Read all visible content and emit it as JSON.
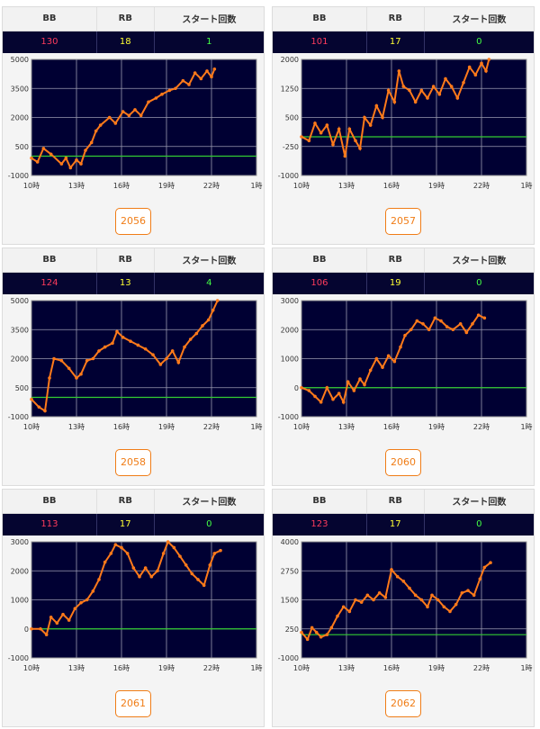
{
  "headers": {
    "bb": "BB",
    "rb": "RB",
    "start": "スタート回数"
  },
  "cards": [
    {
      "machine": "2056",
      "bb": "130",
      "rb": "18",
      "start": "1",
      "chart_data": {
        "type": "line",
        "ylim": [
          -1000,
          5000
        ],
        "yticks": [
          "5000",
          "3500",
          "2000",
          "500",
          "-1000"
        ],
        "xticks": [
          "10時",
          "13時",
          "16時",
          "19時",
          "22時",
          "1時"
        ],
        "xlim": [
          10,
          25
        ],
        "baseline": 0,
        "series": [
          {
            "values": [
              [
                10,
                -100
              ],
              [
                10.4,
                -300
              ],
              [
                10.8,
                400
              ],
              [
                11.3,
                100
              ],
              [
                12,
                -400
              ],
              [
                12.3,
                -100
              ],
              [
                12.6,
                -600
              ],
              [
                13,
                -200
              ],
              [
                13.3,
                -400
              ],
              [
                13.6,
                300
              ],
              [
                14,
                700
              ],
              [
                14.3,
                1300
              ],
              [
                14.6,
                1600
              ],
              [
                15.2,
                2000
              ],
              [
                15.6,
                1700
              ],
              [
                16.1,
                2300
              ],
              [
                16.5,
                2100
              ],
              [
                16.9,
                2400
              ],
              [
                17.3,
                2100
              ],
              [
                17.8,
                2800
              ],
              [
                18.3,
                3000
              ],
              [
                18.7,
                3200
              ],
              [
                19.2,
                3400
              ],
              [
                19.6,
                3500
              ],
              [
                20.1,
                3900
              ],
              [
                20.5,
                3700
              ],
              [
                20.9,
                4300
              ],
              [
                21.3,
                4000
              ],
              [
                21.7,
                4400
              ],
              [
                22,
                4100
              ],
              [
                22.2,
                4500
              ]
            ]
          }
        ]
      }
    },
    {
      "machine": "2057",
      "bb": "101",
      "rb": "17",
      "start": "0",
      "chart_data": {
        "type": "line",
        "ylim": [
          -1000,
          2000
        ],
        "yticks": [
          "2000",
          "1250",
          "500",
          "-250",
          "-1000"
        ],
        "xticks": [
          "10時",
          "13時",
          "16時",
          "19時",
          "22時",
          "1時"
        ],
        "xlim": [
          10,
          25
        ],
        "baseline": 0,
        "series": [
          {
            "values": [
              [
                10,
                0
              ],
              [
                10.5,
                -100
              ],
              [
                10.9,
                350
              ],
              [
                11.3,
                100
              ],
              [
                11.7,
                300
              ],
              [
                12.1,
                -200
              ],
              [
                12.5,
                200
              ],
              [
                12.9,
                -500
              ],
              [
                13.2,
                200
              ],
              [
                13.6,
                -100
              ],
              [
                13.9,
                -300
              ],
              [
                14.2,
                500
              ],
              [
                14.6,
                300
              ],
              [
                15,
                800
              ],
              [
                15.4,
                500
              ],
              [
                15.8,
                1200
              ],
              [
                16.2,
                900
              ],
              [
                16.5,
                1700
              ],
              [
                16.8,
                1300
              ],
              [
                17.2,
                1200
              ],
              [
                17.6,
                900
              ],
              [
                18,
                1200
              ],
              [
                18.4,
                1000
              ],
              [
                18.8,
                1300
              ],
              [
                19.2,
                1100
              ],
              [
                19.6,
                1500
              ],
              [
                20,
                1300
              ],
              [
                20.4,
                1000
              ],
              [
                20.8,
                1400
              ],
              [
                21.2,
                1800
              ],
              [
                21.6,
                1600
              ],
              [
                22,
                1900
              ],
              [
                22.3,
                1700
              ],
              [
                22.5,
                2000
              ]
            ]
          }
        ]
      }
    },
    {
      "machine": "2058",
      "bb": "124",
      "rb": "13",
      "start": "4",
      "chart_data": {
        "type": "line",
        "ylim": [
          -1000,
          5000
        ],
        "yticks": [
          "5000",
          "3500",
          "2000",
          "500",
          "-1000"
        ],
        "xticks": [
          "10時",
          "13時",
          "16時",
          "19時",
          "22時",
          "1時"
        ],
        "xlim": [
          10,
          25
        ],
        "baseline": 0,
        "series": [
          {
            "values": [
              [
                10,
                -100
              ],
              [
                10.5,
                -500
              ],
              [
                10.9,
                -700
              ],
              [
                11.2,
                1000
              ],
              [
                11.5,
                2000
              ],
              [
                12,
                1900
              ],
              [
                12.5,
                1500
              ],
              [
                13,
                1000
              ],
              [
                13.3,
                1200
              ],
              [
                13.7,
                1900
              ],
              [
                14.1,
                2000
              ],
              [
                14.5,
                2400
              ],
              [
                14.9,
                2600
              ],
              [
                15.4,
                2800
              ],
              [
                15.7,
                3400
              ],
              [
                16.1,
                3100
              ],
              [
                16.6,
                2900
              ],
              [
                17.1,
                2700
              ],
              [
                17.6,
                2500
              ],
              [
                18.1,
                2200
              ],
              [
                18.6,
                1700
              ],
              [
                19,
                2000
              ],
              [
                19.4,
                2400
              ],
              [
                19.8,
                1800
              ],
              [
                20.2,
                2600
              ],
              [
                20.6,
                3000
              ],
              [
                21,
                3300
              ],
              [
                21.4,
                3700
              ],
              [
                21.8,
                4000
              ],
              [
                22.1,
                4500
              ],
              [
                22.4,
                5000
              ]
            ]
          }
        ]
      }
    },
    {
      "machine": "2060",
      "bb": "106",
      "rb": "19",
      "start": "0",
      "chart_data": {
        "type": "line",
        "ylim": [
          -1000,
          3000
        ],
        "yticks": [
          "3000",
          "2000",
          "1000",
          "0",
          "-1000"
        ],
        "xticks": [
          "10時",
          "13時",
          "16時",
          "19時",
          "22時",
          "1時"
        ],
        "xlim": [
          10,
          25
        ],
        "baseline": 0,
        "series": [
          {
            "values": [
              [
                10,
                0
              ],
              [
                10.5,
                -100
              ],
              [
                10.9,
                -300
              ],
              [
                11.3,
                -500
              ],
              [
                11.7,
                0
              ],
              [
                12.1,
                -400
              ],
              [
                12.5,
                -200
              ],
              [
                12.8,
                -500
              ],
              [
                13.1,
                200
              ],
              [
                13.5,
                -100
              ],
              [
                13.9,
                300
              ],
              [
                14.2,
                100
              ],
              [
                14.6,
                600
              ],
              [
                15,
                1000
              ],
              [
                15.4,
                700
              ],
              [
                15.8,
                1100
              ],
              [
                16.2,
                900
              ],
              [
                16.6,
                1400
              ],
              [
                16.9,
                1800
              ],
              [
                17.3,
                2000
              ],
              [
                17.7,
                2300
              ],
              [
                18.1,
                2200
              ],
              [
                18.5,
                2000
              ],
              [
                18.9,
                2400
              ],
              [
                19.3,
                2300
              ],
              [
                19.7,
                2100
              ],
              [
                20.1,
                2000
              ],
              [
                20.6,
                2200
              ],
              [
                21,
                1900
              ],
              [
                21.4,
                2200
              ],
              [
                21.8,
                2500
              ],
              [
                22.2,
                2400
              ]
            ]
          }
        ]
      }
    },
    {
      "machine": "2061",
      "bb": "113",
      "rb": "17",
      "start": "0",
      "chart_data": {
        "type": "line",
        "ylim": [
          -1000,
          3000
        ],
        "yticks": [
          "3000",
          "2000",
          "1000",
          "0",
          "-1000"
        ],
        "xticks": [
          "10時",
          "13時",
          "16時",
          "19時",
          "22時",
          "1時"
        ],
        "xlim": [
          10,
          25
        ],
        "baseline": 0,
        "series": [
          {
            "values": [
              [
                10,
                0
              ],
              [
                10.6,
                0
              ],
              [
                11,
                -200
              ],
              [
                11.3,
                400
              ],
              [
                11.7,
                200
              ],
              [
                12.1,
                500
              ],
              [
                12.5,
                300
              ],
              [
                12.9,
                700
              ],
              [
                13.3,
                900
              ],
              [
                13.7,
                1000
              ],
              [
                14.1,
                1300
              ],
              [
                14.5,
                1700
              ],
              [
                14.9,
                2300
              ],
              [
                15.3,
                2600
              ],
              [
                15.6,
                2900
              ],
              [
                16,
                2800
              ],
              [
                16.4,
                2600
              ],
              [
                16.8,
                2100
              ],
              [
                17.2,
                1800
              ],
              [
                17.6,
                2100
              ],
              [
                18,
                1800
              ],
              [
                18.4,
                2000
              ],
              [
                18.8,
                2600
              ],
              [
                19.1,
                3000
              ],
              [
                19.5,
                2800
              ],
              [
                19.9,
                2500
              ],
              [
                20.3,
                2200
              ],
              [
                20.7,
                1900
              ],
              [
                21.1,
                1700
              ],
              [
                21.5,
                1500
              ],
              [
                21.9,
                2200
              ],
              [
                22.2,
                2600
              ],
              [
                22.6,
                2700
              ]
            ]
          }
        ]
      }
    },
    {
      "machine": "2062",
      "bb": "123",
      "rb": "17",
      "start": "0",
      "chart_data": {
        "type": "line",
        "ylim": [
          -1000,
          4000
        ],
        "yticks": [
          "4000",
          "2750",
          "1500",
          "250",
          "-1000"
        ],
        "xticks": [
          "10時",
          "13時",
          "16時",
          "19時",
          "22時",
          "1時"
        ],
        "xlim": [
          10,
          25
        ],
        "baseline": 0,
        "series": [
          {
            "values": [
              [
                10,
                100
              ],
              [
                10.4,
                -200
              ],
              [
                10.7,
                300
              ],
              [
                11,
                100
              ],
              [
                11.3,
                -100
              ],
              [
                11.7,
                0
              ],
              [
                12,
                300
              ],
              [
                12.4,
                800
              ],
              [
                12.8,
                1200
              ],
              [
                13.2,
                1000
              ],
              [
                13.6,
                1500
              ],
              [
                14,
                1400
              ],
              [
                14.4,
                1700
              ],
              [
                14.8,
                1500
              ],
              [
                15.2,
                1800
              ],
              [
                15.6,
                1600
              ],
              [
                16,
                2800
              ],
              [
                16.4,
                2500
              ],
              [
                16.8,
                2300
              ],
              [
                17.2,
                2000
              ],
              [
                17.6,
                1700
              ],
              [
                18,
                1500
              ],
              [
                18.4,
                1200
              ],
              [
                18.7,
                1700
              ],
              [
                19.1,
                1500
              ],
              [
                19.5,
                1200
              ],
              [
                19.9,
                1000
              ],
              [
                20.3,
                1300
              ],
              [
                20.7,
                1800
              ],
              [
                21.1,
                1900
              ],
              [
                21.5,
                1700
              ],
              [
                21.9,
                2400
              ],
              [
                22.2,
                2900
              ],
              [
                22.6,
                3100
              ]
            ]
          }
        ]
      }
    }
  ]
}
